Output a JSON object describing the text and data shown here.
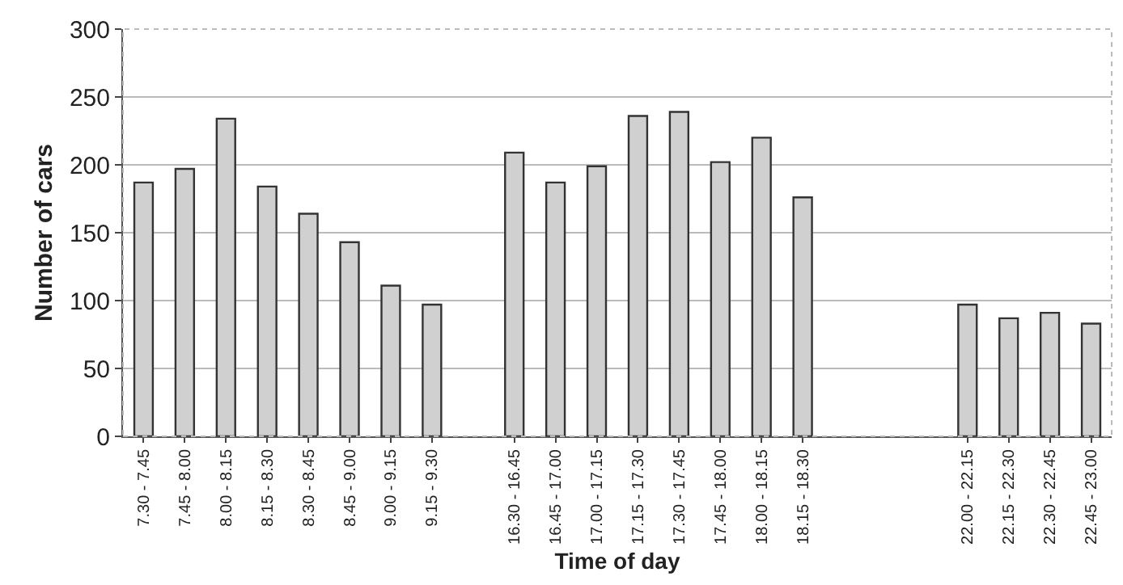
{
  "chart_data": {
    "type": "bar",
    "xlabel": "Time of day",
    "ylabel": "Number of cars",
    "categories": [
      "7.30 - 7.45",
      "7.45 - 8.00",
      "8.00 - 8.15",
      "8.15 - 8.30",
      "8.30 - 8.45",
      "8.45 - 9.00",
      "9.00 - 9.15",
      "9.15 - 9.30",
      null,
      "16.30 - 16.45",
      "16.45 - 17.00",
      "17.00 - 17.15",
      "17.15 - 17.30",
      "17.30 - 17.45",
      "17.45 - 18.00",
      "18.00 - 18.15",
      "18.15 - 18.30",
      null,
      null,
      null,
      "22.00 - 22.15",
      "22.15 - 22.30",
      "22.30 - 22.45",
      "22.45 - 23.00"
    ],
    "values": [
      187,
      197,
      234,
      184,
      164,
      143,
      111,
      97,
      null,
      209,
      187,
      199,
      236,
      239,
      202,
      220,
      176,
      null,
      null,
      null,
      97,
      87,
      91,
      83
    ],
    "color": "#d0d0d0",
    "ylim": [
      0,
      300
    ],
    "yticks": [
      0,
      50,
      100,
      150,
      200,
      250,
      300
    ],
    "grid": "y"
  }
}
